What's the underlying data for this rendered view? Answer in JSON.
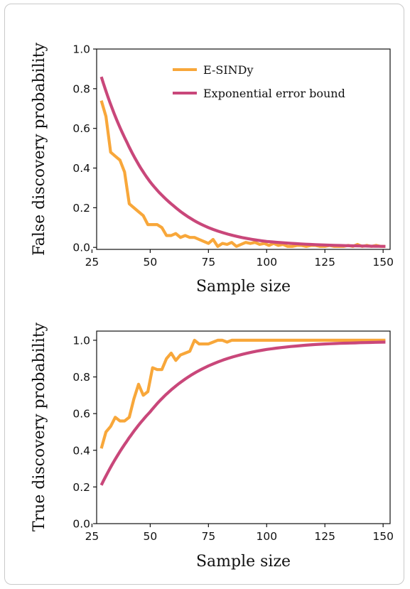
{
  "colors": {
    "esindy": "#f8a73a",
    "bound": "#c9477a",
    "axis": "#111111",
    "frame": "#c9c9c9"
  },
  "chart_data": [
    {
      "type": "line",
      "title": "",
      "xlabel": "Sample size",
      "ylabel": "False discovery probability",
      "xlim": [
        27,
        153
      ],
      "ylim": [
        -0.01,
        1.0
      ],
      "xticks": [
        25,
        50,
        75,
        100,
        125,
        150
      ],
      "yticks": [
        0.0,
        0.2,
        0.4,
        0.6,
        0.8,
        1.0
      ],
      "xtick_labels": [
        "25",
        "50",
        "75",
        "100",
        "125",
        "150"
      ],
      "ytick_labels": [
        "0.0",
        "0.2",
        "0.4",
        "0.6",
        "0.8",
        "1.0"
      ],
      "grid": false,
      "legend": {
        "placement": "top-right",
        "entries": [
          "E-SINDy",
          "Exponential error bound"
        ]
      },
      "series": [
        {
          "name": "E-SINDy",
          "x": [
            29,
            31,
            33,
            35,
            37,
            39,
            41,
            43,
            45,
            47,
            49,
            51,
            53,
            55,
            57,
            59,
            61,
            63,
            65,
            67,
            69,
            71,
            73,
            75,
            77,
            79,
            81,
            83,
            85,
            87,
            89,
            91,
            93,
            95,
            97,
            99,
            101,
            103,
            105,
            107,
            109,
            111,
            113,
            115,
            117,
            119,
            121,
            123,
            125,
            127,
            129,
            131,
            133,
            135,
            137,
            139,
            141,
            143,
            145,
            147,
            149,
            151
          ],
          "y": [
            0.74,
            0.66,
            0.48,
            0.46,
            0.44,
            0.38,
            0.22,
            0.2,
            0.18,
            0.16,
            0.115,
            0.115,
            0.115,
            0.1,
            0.06,
            0.06,
            0.07,
            0.05,
            0.06,
            0.05,
            0.05,
            0.04,
            0.03,
            0.02,
            0.04,
            0.005,
            0.02,
            0.015,
            0.025,
            0.005,
            0.015,
            0.025,
            0.02,
            0.025,
            0.015,
            0.02,
            0.01,
            0.02,
            0.01,
            0.015,
            0.005,
            0.005,
            0.01,
            0.01,
            0.005,
            0.01,
            0.01,
            0.005,
            0.005,
            0.01,
            0.005,
            0.005,
            0.005,
            0.01,
            0.005,
            0.015,
            0.005,
            0.01,
            0.005,
            0.01,
            0.005,
            0.005
          ]
        },
        {
          "name": "Exponential error bound",
          "curve": "exponential",
          "x_range": [
            29,
            151
          ],
          "samples": [
            [
              29,
              0.86
            ],
            [
              40,
              0.53
            ],
            [
              50,
              0.33
            ],
            [
              60,
              0.21
            ],
            [
              75,
              0.1
            ],
            [
              100,
              0.03
            ],
            [
              125,
              0.012
            ],
            [
              151,
              0.005
            ]
          ]
        }
      ]
    },
    {
      "type": "line",
      "title": "",
      "xlabel": "Sample size",
      "ylabel": "True discovery probability",
      "xlim": [
        27,
        153
      ],
      "ylim": [
        0.0,
        1.05
      ],
      "xticks": [
        25,
        50,
        75,
        100,
        125,
        150
      ],
      "yticks": [
        0.0,
        0.2,
        0.4,
        0.6,
        0.8,
        1.0
      ],
      "xtick_labels": [
        "25",
        "50",
        "75",
        "100",
        "125",
        "150"
      ],
      "ytick_labels": [
        "0.0",
        "0.2",
        "0.4",
        "0.6",
        "0.8",
        "1.0"
      ],
      "grid": false,
      "series": [
        {
          "name": "E-SINDy",
          "x": [
            29,
            31,
            33,
            35,
            37,
            39,
            41,
            43,
            45,
            47,
            49,
            51,
            53,
            55,
            57,
            59,
            61,
            63,
            65,
            67,
            69,
            71,
            73,
            75,
            77,
            79,
            81,
            83,
            85,
            87,
            89,
            91,
            93,
            95,
            97,
            99,
            101,
            105,
            110,
            115,
            120,
            125,
            130,
            135,
            140,
            145,
            151
          ],
          "y": [
            0.41,
            0.5,
            0.53,
            0.58,
            0.56,
            0.56,
            0.58,
            0.68,
            0.76,
            0.7,
            0.72,
            0.85,
            0.84,
            0.84,
            0.9,
            0.93,
            0.89,
            0.92,
            0.93,
            0.94,
            1.0,
            0.98,
            0.98,
            0.98,
            0.99,
            1.0,
            1.0,
            0.99,
            1.0,
            1.0,
            1.0,
            1.0,
            1.0,
            1.0,
            1.0,
            1.0,
            1.0,
            1.0,
            1.0,
            1.0,
            1.0,
            1.0,
            1.0,
            1.0,
            1.0,
            1.0,
            1.0
          ]
        },
        {
          "name": "Exponential error bound",
          "curve": "exponential",
          "x_range": [
            29,
            151
          ],
          "samples": [
            [
              29,
              0.21
            ],
            [
              40,
              0.45
            ],
            [
              50,
              0.61
            ],
            [
              60,
              0.74
            ],
            [
              75,
              0.86
            ],
            [
              100,
              0.95
            ],
            [
              125,
              0.98
            ],
            [
              151,
              0.99
            ]
          ]
        }
      ]
    }
  ]
}
